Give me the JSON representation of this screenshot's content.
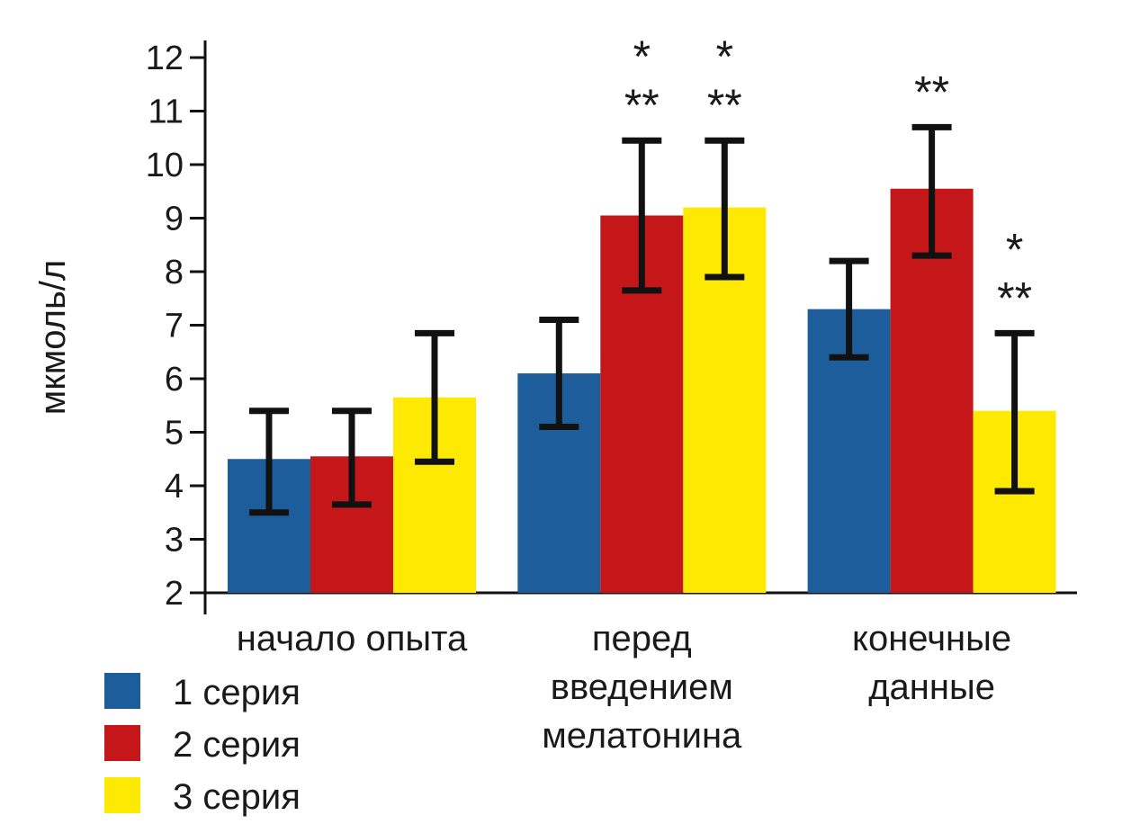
{
  "chart_data": {
    "type": "bar",
    "title": "",
    "ylabel": "мкмоль/л",
    "ylim": [
      2,
      12
    ],
    "ytick_step": 1,
    "grid": false,
    "error_bars": true,
    "legend_position": "bottom-left",
    "categories": [
      "начало опыта",
      "перед\nвведением\nмелатонина",
      "конечные\nданные"
    ],
    "series": [
      {
        "name": "1 серия",
        "color": "#1E5D9C",
        "values": [
          4.5,
          6.1,
          7.3
        ],
        "err_low": [
          3.5,
          5.1,
          6.4
        ],
        "err_high": [
          5.4,
          7.1,
          8.2
        ]
      },
      {
        "name": "2 серия",
        "color": "#C5161A",
        "values": [
          4.55,
          9.05,
          9.55
        ],
        "err_low": [
          3.65,
          7.65,
          8.3
        ],
        "err_high": [
          5.4,
          10.45,
          10.7
        ]
      },
      {
        "name": "3 серия",
        "color": "#FDE901",
        "values": [
          5.65,
          9.2,
          5.4
        ],
        "err_low": [
          4.45,
          7.9,
          3.9
        ],
        "err_high": [
          6.85,
          10.45,
          6.85
        ]
      }
    ],
    "annotations": [
      {
        "category_index": 1,
        "series_index": 1,
        "markers": [
          "*",
          "**"
        ]
      },
      {
        "category_index": 1,
        "series_index": 2,
        "markers": [
          "*",
          "**"
        ]
      },
      {
        "category_index": 2,
        "series_index": 1,
        "markers": [
          "**"
        ]
      },
      {
        "category_index": 2,
        "series_index": 2,
        "markers": [
          "*",
          "**"
        ]
      }
    ]
  }
}
